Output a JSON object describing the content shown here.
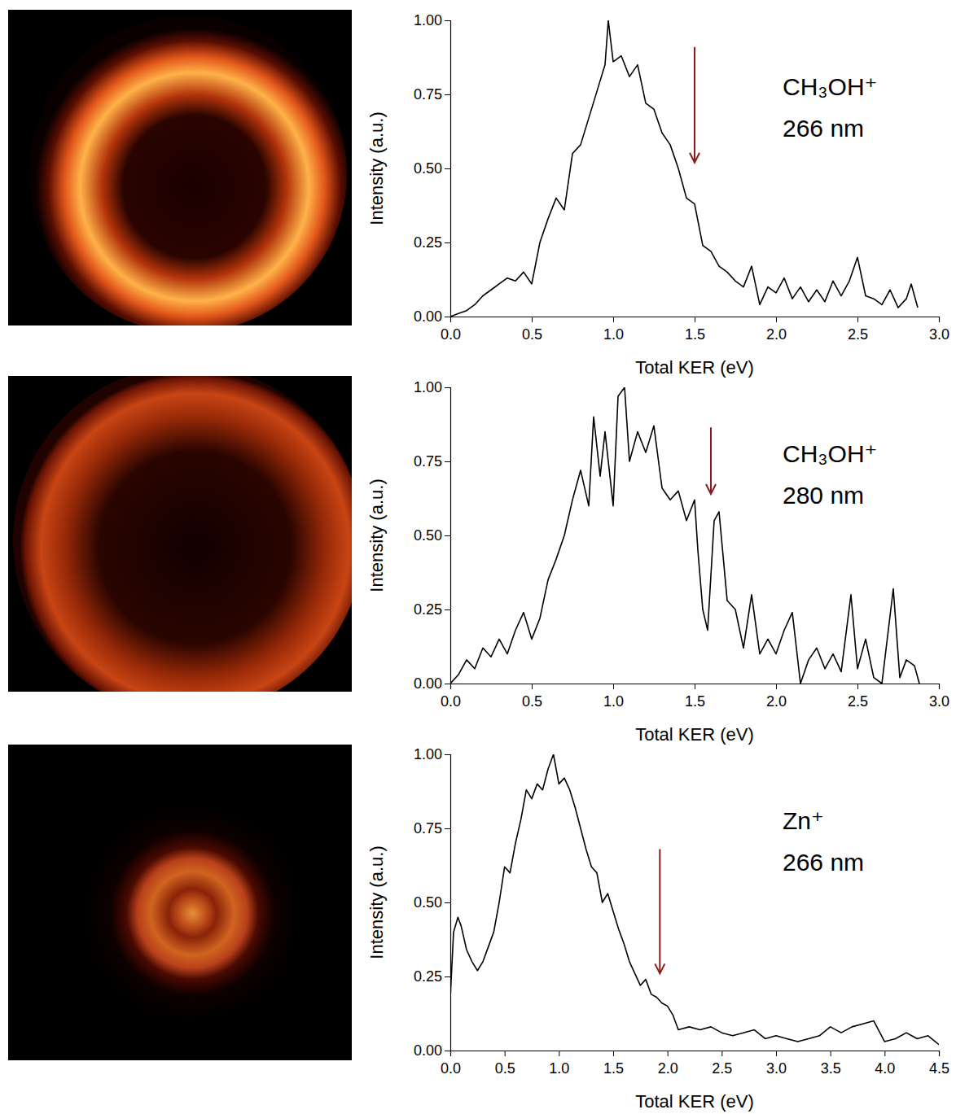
{
  "chart_data": [
    {
      "type": "line",
      "annotation": [
        "CH₃OH⁺",
        "266 nm"
      ],
      "x_label": "Total KER (eV)",
      "y_label": "Intensity (a.u.)",
      "xlim": [
        0,
        3
      ],
      "ylim": [
        0,
        1
      ],
      "xticks": [
        {
          "value": 0,
          "label": "0.0"
        },
        {
          "value": 0.5,
          "label": "0.5"
        },
        {
          "value": 1,
          "label": "1.0"
        },
        {
          "value": 1.5,
          "label": "1.5"
        },
        {
          "value": 2,
          "label": "2.0"
        },
        {
          "value": 2.5,
          "label": "2.5"
        },
        {
          "value": 3,
          "label": "3.0"
        }
      ],
      "yticks": [
        {
          "value": 0,
          "label": "0.00"
        },
        {
          "value": 0.25,
          "label": "0.25"
        },
        {
          "value": 0.5,
          "label": "0.50"
        },
        {
          "value": 0.75,
          "label": "0.75"
        },
        {
          "value": 1,
          "label": "1.00"
        }
      ],
      "color": "#000000",
      "arrow": {
        "x": 1.5,
        "y_start": 0.91,
        "y_end": 0.52
      },
      "x": [
        0.0,
        0.05,
        0.1,
        0.15,
        0.2,
        0.25,
        0.3,
        0.35,
        0.4,
        0.45,
        0.5,
        0.55,
        0.6,
        0.65,
        0.7,
        0.75,
        0.8,
        0.85,
        0.9,
        0.95,
        0.97,
        1.0,
        1.05,
        1.1,
        1.15,
        1.2,
        1.25,
        1.3,
        1.35,
        1.4,
        1.45,
        1.5,
        1.55,
        1.6,
        1.65,
        1.7,
        1.75,
        1.8,
        1.85,
        1.9,
        1.95,
        2.0,
        2.05,
        2.1,
        2.15,
        2.2,
        2.25,
        2.3,
        2.35,
        2.4,
        2.45,
        2.5,
        2.55,
        2.6,
        2.65,
        2.7,
        2.75,
        2.8,
        2.83,
        2.87
      ],
      "values": [
        0.0,
        0.01,
        0.02,
        0.04,
        0.07,
        0.09,
        0.11,
        0.13,
        0.12,
        0.15,
        0.11,
        0.25,
        0.33,
        0.4,
        0.36,
        0.55,
        0.58,
        0.67,
        0.76,
        0.85,
        1.0,
        0.86,
        0.88,
        0.81,
        0.85,
        0.72,
        0.7,
        0.62,
        0.58,
        0.5,
        0.4,
        0.38,
        0.24,
        0.22,
        0.17,
        0.15,
        0.12,
        0.1,
        0.17,
        0.04,
        0.1,
        0.08,
        0.13,
        0.06,
        0.1,
        0.05,
        0.09,
        0.05,
        0.12,
        0.07,
        0.12,
        0.2,
        0.07,
        0.06,
        0.04,
        0.09,
        0.03,
        0.06,
        0.11,
        0.03
      ]
    },
    {
      "type": "line",
      "annotation": [
        "CH₃OH⁺",
        "280 nm"
      ],
      "x_label": "Total KER (eV)",
      "y_label": "Intensity (a.u.)",
      "xlim": [
        0,
        3
      ],
      "ylim": [
        0,
        1
      ],
      "xticks": [
        {
          "value": 0,
          "label": "0.0"
        },
        {
          "value": 0.5,
          "label": "0.5"
        },
        {
          "value": 1,
          "label": "1.0"
        },
        {
          "value": 1.5,
          "label": "1.5"
        },
        {
          "value": 2,
          "label": "2.0"
        },
        {
          "value": 2.5,
          "label": "2.5"
        },
        {
          "value": 3,
          "label": "3.0"
        }
      ],
      "yticks": [
        {
          "value": 0,
          "label": "0.00"
        },
        {
          "value": 0.25,
          "label": "0.25"
        },
        {
          "value": 0.5,
          "label": "0.50"
        },
        {
          "value": 0.75,
          "label": "0.75"
        },
        {
          "value": 1,
          "label": "1.00"
        }
      ],
      "color": "#000000",
      "arrow": {
        "x": 1.6,
        "y_start": 0.865,
        "y_end": 0.64
      },
      "x": [
        0.0,
        0.05,
        0.1,
        0.15,
        0.2,
        0.25,
        0.3,
        0.35,
        0.4,
        0.45,
        0.5,
        0.55,
        0.6,
        0.65,
        0.7,
        0.75,
        0.8,
        0.85,
        0.88,
        0.92,
        0.95,
        1.0,
        1.03,
        1.07,
        1.1,
        1.15,
        1.2,
        1.25,
        1.3,
        1.35,
        1.4,
        1.45,
        1.5,
        1.52,
        1.55,
        1.58,
        1.62,
        1.65,
        1.7,
        1.75,
        1.8,
        1.85,
        1.9,
        1.95,
        2.0,
        2.05,
        2.1,
        2.15,
        2.2,
        2.25,
        2.3,
        2.35,
        2.4,
        2.46,
        2.5,
        2.55,
        2.6,
        2.65,
        2.72,
        2.76,
        2.8,
        2.85,
        2.88
      ],
      "values": [
        0.0,
        0.03,
        0.08,
        0.05,
        0.12,
        0.09,
        0.15,
        0.1,
        0.18,
        0.24,
        0.15,
        0.22,
        0.35,
        0.42,
        0.5,
        0.62,
        0.72,
        0.6,
        0.9,
        0.7,
        0.85,
        0.6,
        0.97,
        1.0,
        0.75,
        0.85,
        0.78,
        0.87,
        0.66,
        0.62,
        0.65,
        0.55,
        0.62,
        0.45,
        0.25,
        0.18,
        0.55,
        0.58,
        0.28,
        0.25,
        0.12,
        0.3,
        0.1,
        0.15,
        0.1,
        0.18,
        0.24,
        0.0,
        0.08,
        0.12,
        0.05,
        0.1,
        0.04,
        0.3,
        0.05,
        0.15,
        0.02,
        0.0,
        0.32,
        0.02,
        0.08,
        0.06,
        0.0
      ]
    },
    {
      "type": "line",
      "annotation": [
        "Zn⁺",
        "266 nm"
      ],
      "x_label": "Total KER (eV)",
      "y_label": "Intensity (a.u.)",
      "xlim": [
        0,
        4.5
      ],
      "ylim": [
        0,
        1
      ],
      "xticks": [
        {
          "value": 0,
          "label": "0.0"
        },
        {
          "value": 0.5,
          "label": "0.5"
        },
        {
          "value": 1,
          "label": "1.0"
        },
        {
          "value": 1.5,
          "label": "1.5"
        },
        {
          "value": 2,
          "label": "2.0"
        },
        {
          "value": 2.5,
          "label": "2.5"
        },
        {
          "value": 3,
          "label": "3.0"
        },
        {
          "value": 3.5,
          "label": "3.5"
        },
        {
          "value": 4,
          "label": "4.0"
        },
        {
          "value": 4.5,
          "label": "4.5"
        }
      ],
      "yticks": [
        {
          "value": 0,
          "label": "0.00"
        },
        {
          "value": 0.25,
          "label": "0.25"
        },
        {
          "value": 0.5,
          "label": "0.50"
        },
        {
          "value": 0.75,
          "label": "0.75"
        },
        {
          "value": 1,
          "label": "1.00"
        }
      ],
      "color": "#000000",
      "arrow": {
        "x": 1.93,
        "y_start": 0.68,
        "y_end": 0.26
      },
      "x": [
        0.0,
        0.03,
        0.07,
        0.1,
        0.15,
        0.2,
        0.25,
        0.3,
        0.35,
        0.4,
        0.45,
        0.5,
        0.55,
        0.6,
        0.65,
        0.7,
        0.75,
        0.8,
        0.85,
        0.9,
        0.95,
        1.0,
        1.05,
        1.1,
        1.15,
        1.2,
        1.25,
        1.3,
        1.35,
        1.4,
        1.45,
        1.5,
        1.55,
        1.6,
        1.65,
        1.7,
        1.75,
        1.8,
        1.85,
        1.9,
        1.95,
        2.0,
        2.05,
        2.1,
        2.2,
        2.3,
        2.4,
        2.5,
        2.6,
        2.7,
        2.8,
        2.9,
        3.0,
        3.1,
        3.2,
        3.3,
        3.4,
        3.5,
        3.6,
        3.7,
        3.8,
        3.9,
        4.0,
        4.1,
        4.2,
        4.3,
        4.4,
        4.5
      ],
      "values": [
        0.18,
        0.4,
        0.45,
        0.42,
        0.34,
        0.3,
        0.27,
        0.3,
        0.35,
        0.4,
        0.5,
        0.62,
        0.6,
        0.7,
        0.78,
        0.88,
        0.85,
        0.9,
        0.88,
        0.95,
        1.0,
        0.9,
        0.92,
        0.88,
        0.82,
        0.75,
        0.68,
        0.62,
        0.6,
        0.5,
        0.53,
        0.47,
        0.41,
        0.36,
        0.3,
        0.26,
        0.22,
        0.24,
        0.19,
        0.18,
        0.16,
        0.15,
        0.12,
        0.07,
        0.08,
        0.07,
        0.08,
        0.06,
        0.05,
        0.06,
        0.07,
        0.04,
        0.05,
        0.04,
        0.03,
        0.04,
        0.05,
        0.08,
        0.06,
        0.08,
        0.09,
        0.1,
        0.03,
        0.04,
        0.06,
        0.04,
        0.05,
        0.02
      ]
    }
  ]
}
